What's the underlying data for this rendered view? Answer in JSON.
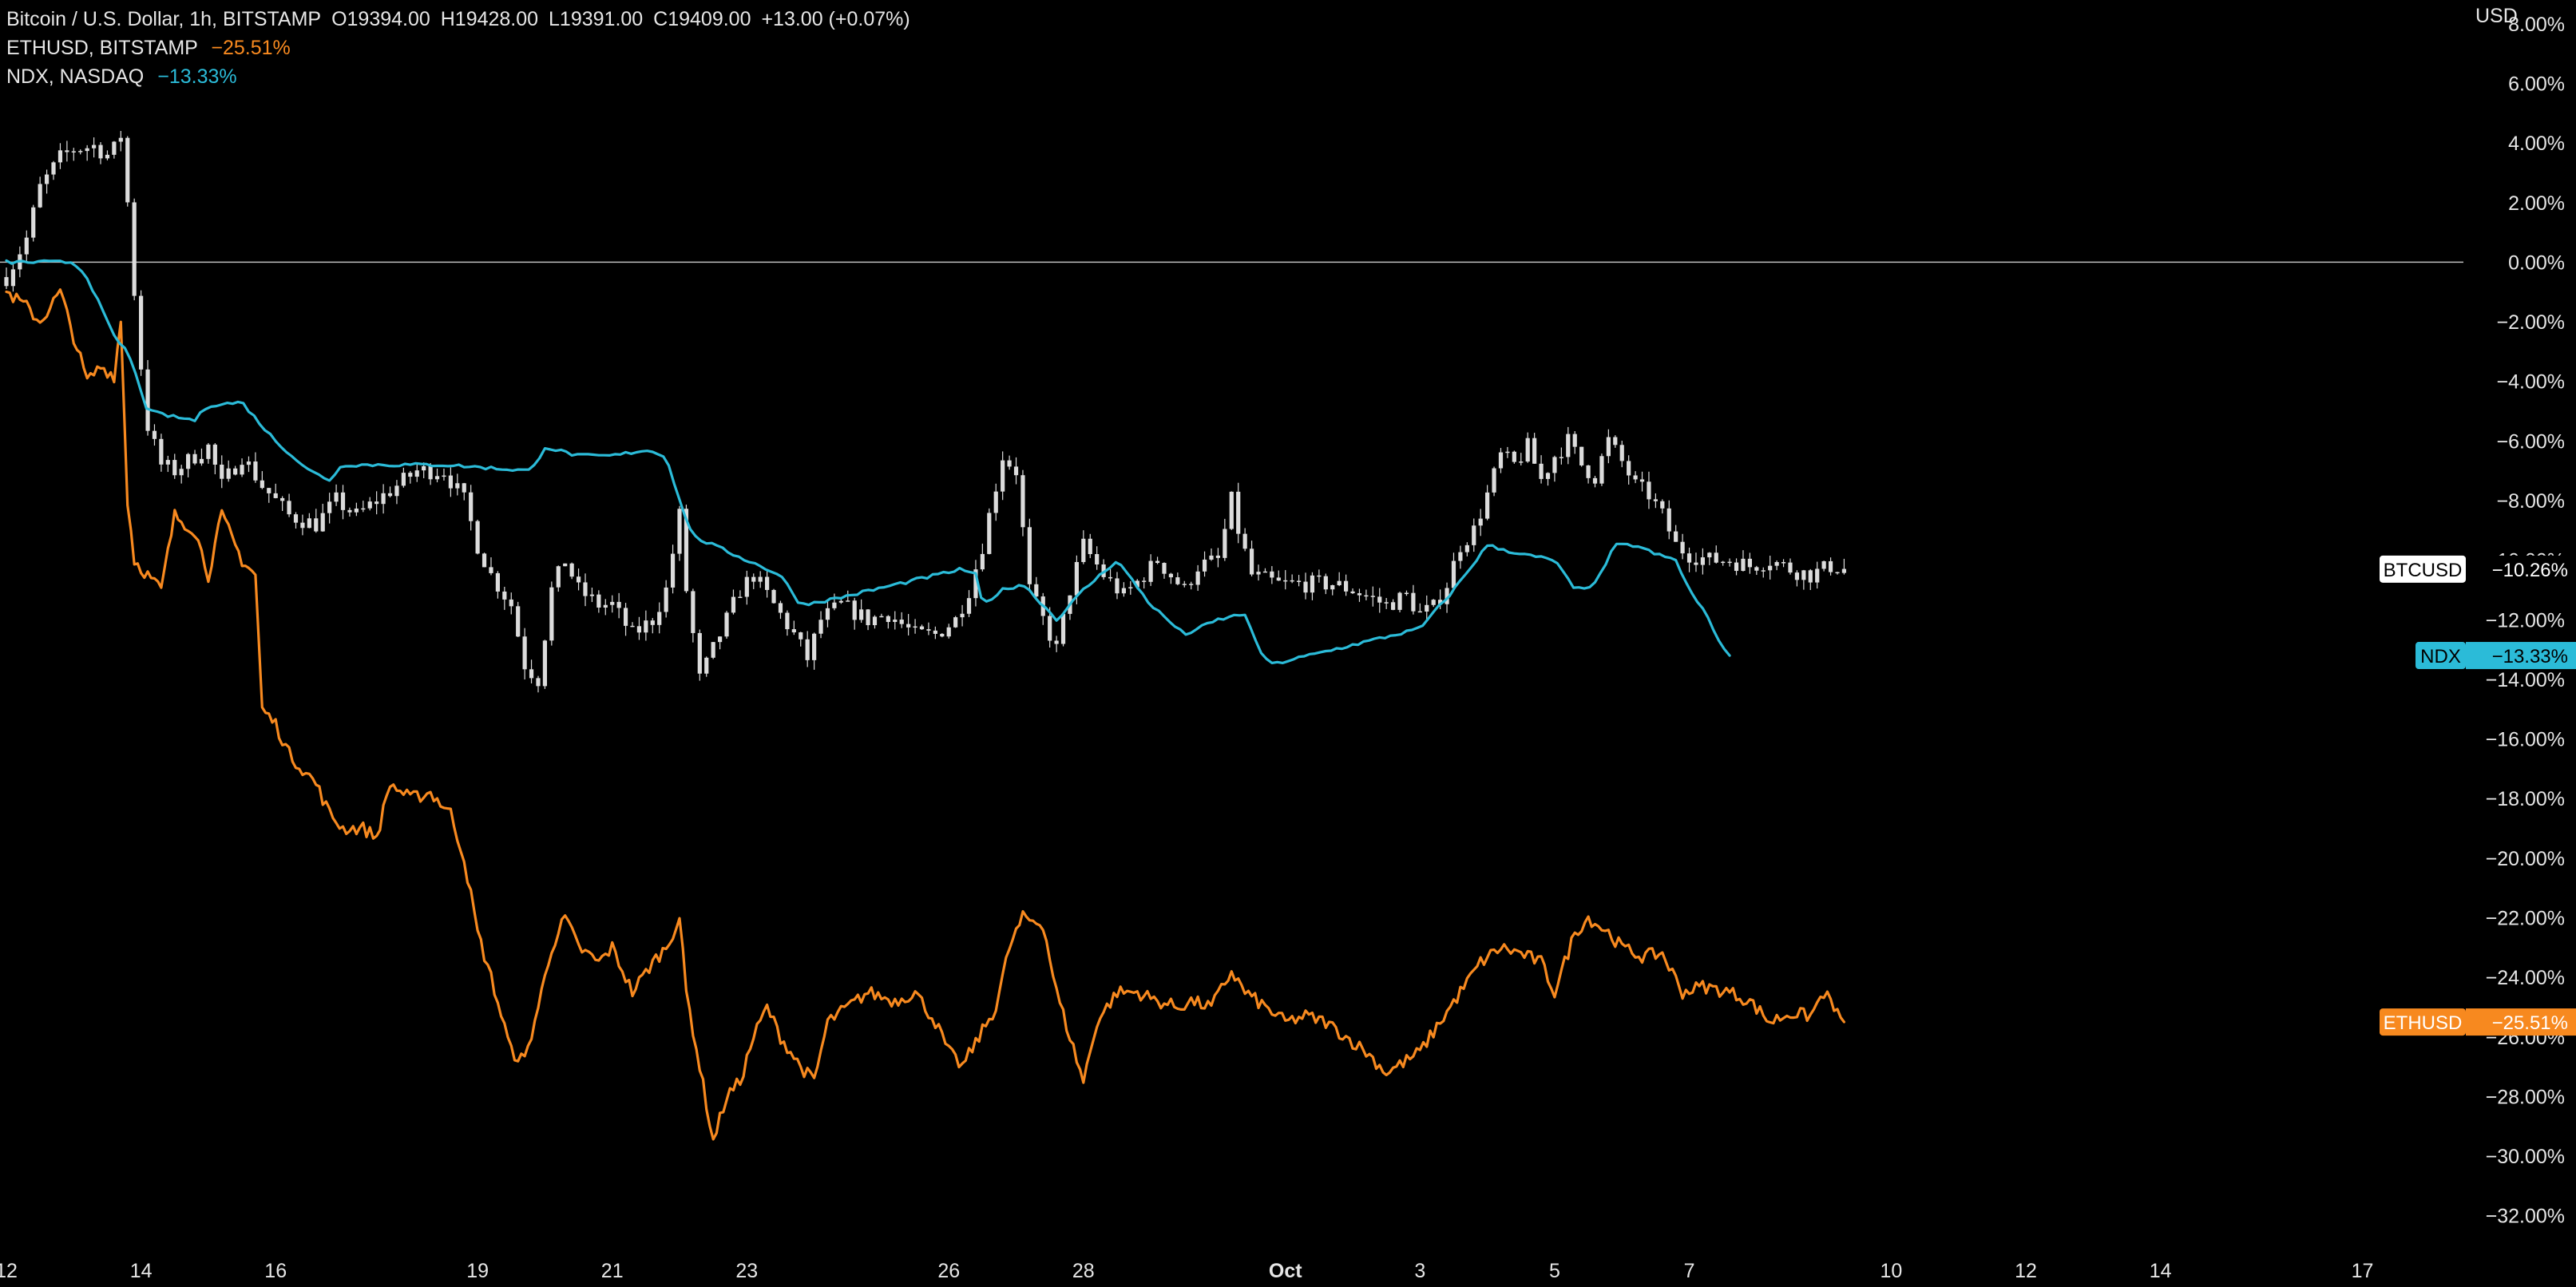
{
  "legend": {
    "btc": {
      "symbol": "Bitcoin / U.S. Dollar, 1h, BITSTAMP",
      "open": "O19394.00",
      "high": "H19428.00",
      "low": "L19391.00",
      "close": "C19409.00",
      "change": "+13.00 (+0.07%)"
    },
    "eth": {
      "symbol": "ETHUSD, BITSTAMP",
      "change": "−25.51%"
    },
    "ndx": {
      "symbol": "NDX, NASDAQ",
      "change": "−13.33%"
    }
  },
  "colors": {
    "background": "#000000",
    "btc_candles": "#dcdcdc",
    "eth": "#f7891f",
    "ndx": "#2bbbd8",
    "zero_line": "#bfbfbf",
    "axis_text": "#e6e6e6"
  },
  "chart_data": {
    "type": "line",
    "title": "",
    "y_axis": {
      "unit_label": "USD",
      "min": -33,
      "max": 8.8,
      "ticks": [
        8,
        6,
        4,
        2,
        0,
        -2,
        -4,
        -6,
        -8,
        -10,
        -12,
        -14,
        -16,
        -18,
        -20,
        -22,
        -24,
        -26,
        -28,
        -30,
        -32
      ],
      "tick_labels": [
        "8.00%",
        "6.00%",
        "4.00%",
        "2.00%",
        "0.00%",
        "−2.00%",
        "−4.00%",
        "−6.00%",
        "−8.00%",
        "−10.00%",
        "−12.00%",
        "−14.00%",
        "−16.00%",
        "−18.00%",
        "−20.00%",
        "−22.00%",
        "−24.00%",
        "−26.00%",
        "−28.00%",
        "−30.00%",
        "−32.00%"
      ]
    },
    "x_axis": {
      "unit": "days from Sep 12",
      "min": 0,
      "max": 36.5,
      "ticks": [
        0,
        2,
        4,
        7,
        9,
        11,
        14,
        16,
        19,
        21,
        23,
        25,
        28,
        30,
        32,
        35
      ],
      "tick_labels": [
        "12",
        "14",
        "16",
        "19",
        "21",
        "23",
        "26",
        "28",
        "Oct",
        "3",
        "5",
        "7",
        "10",
        "12",
        "14",
        "17"
      ],
      "bold_labels": [
        "Oct"
      ]
    },
    "zero_line": 0,
    "series": [
      {
        "name": "BTCUSD",
        "style": "candles",
        "last_label": "−10.26%",
        "points": [
          [
            0,
            -0.5
          ],
          [
            0.3,
            0.8
          ],
          [
            0.5,
            2.5
          ],
          [
            0.8,
            3.5
          ],
          [
            1.0,
            3.8
          ],
          [
            1.3,
            3.9
          ],
          [
            1.5,
            3.6
          ],
          [
            1.6,
            3.8
          ],
          [
            1.75,
            4.5
          ],
          [
            1.8,
            2
          ],
          [
            1.9,
            -1
          ],
          [
            2.0,
            -3.5
          ],
          [
            2.1,
            -5.5
          ],
          [
            2.3,
            -6.8
          ],
          [
            2.5,
            -7
          ],
          [
            2.8,
            -6.5
          ],
          [
            3.0,
            -6.2
          ],
          [
            3.2,
            -7.5
          ],
          [
            3.5,
            -6.5
          ],
          [
            3.8,
            -7.5
          ],
          [
            4.2,
            -8.5
          ],
          [
            4.6,
            -8.8
          ],
          [
            4.9,
            -8
          ],
          [
            5.2,
            -8.5
          ],
          [
            5.5,
            -8
          ],
          [
            5.8,
            -7.5
          ],
          [
            6.1,
            -7
          ],
          [
            6.5,
            -7
          ],
          [
            6.8,
            -8
          ],
          [
            7.0,
            -9.5
          ],
          [
            7.2,
            -10.5
          ],
          [
            7.5,
            -11.5
          ],
          [
            7.7,
            -13.5
          ],
          [
            7.9,
            -14
          ],
          [
            8.1,
            -11
          ],
          [
            8.3,
            -10
          ],
          [
            8.5,
            -11
          ],
          [
            8.8,
            -11.5
          ],
          [
            9.0,
            -11.5
          ],
          [
            9.3,
            -12.5
          ],
          [
            9.6,
            -12
          ],
          [
            9.8,
            -11
          ],
          [
            10.0,
            -8.5
          ],
          [
            10.1,
            -11
          ],
          [
            10.3,
            -14
          ],
          [
            10.5,
            -13
          ],
          [
            10.7,
            -12
          ],
          [
            10.9,
            -11
          ],
          [
            11.1,
            -10.5
          ],
          [
            11.4,
            -11.5
          ],
          [
            11.7,
            -12.5
          ],
          [
            11.9,
            -13.3
          ],
          [
            12.1,
            -12
          ],
          [
            12.4,
            -11.5
          ],
          [
            12.8,
            -12
          ],
          [
            13.1,
            -11.8
          ],
          [
            13.5,
            -12.5
          ],
          [
            13.8,
            -12.5
          ],
          [
            14.1,
            -12
          ],
          [
            14.3,
            -11
          ],
          [
            14.5,
            -9.5
          ],
          [
            14.7,
            -7.5
          ],
          [
            14.8,
            -6.5
          ],
          [
            15.0,
            -7
          ],
          [
            15.1,
            -9
          ],
          [
            15.2,
            -11
          ],
          [
            15.4,
            -12
          ],
          [
            15.6,
            -13
          ],
          [
            15.8,
            -11
          ],
          [
            16.0,
            -9.5
          ],
          [
            16.3,
            -10.5
          ],
          [
            16.6,
            -11.2
          ],
          [
            16.9,
            -10.5
          ],
          [
            17.1,
            -10
          ],
          [
            17.3,
            -10.5
          ],
          [
            17.5,
            -11
          ],
          [
            17.7,
            -10.2
          ],
          [
            18.0,
            -10
          ],
          [
            18.2,
            -8
          ],
          [
            18.3,
            -9
          ],
          [
            18.5,
            -10.5
          ],
          [
            18.9,
            -10.8
          ],
          [
            19.3,
            -10.8
          ],
          [
            19.7,
            -10.8
          ],
          [
            20.0,
            -11
          ],
          [
            20.3,
            -11.3
          ],
          [
            20.5,
            -11.5
          ],
          [
            20.8,
            -11.2
          ],
          [
            21.0,
            -11.8
          ],
          [
            21.2,
            -11.6
          ],
          [
            21.4,
            -10.8
          ],
          [
            21.6,
            -9.5
          ],
          [
            21.8,
            -9
          ],
          [
            22.0,
            -7.8
          ],
          [
            22.2,
            -6.5
          ],
          [
            22.4,
            -6.8
          ],
          [
            22.6,
            -6.2
          ],
          [
            22.8,
            -7.3
          ],
          [
            23.0,
            -6.5
          ],
          [
            23.2,
            -6
          ],
          [
            23.4,
            -6.8
          ],
          [
            23.6,
            -7.2
          ],
          [
            23.8,
            -6
          ],
          [
            24.0,
            -6.7
          ],
          [
            24.2,
            -7.5
          ],
          [
            24.4,
            -7.8
          ],
          [
            24.6,
            -8.5
          ],
          [
            24.8,
            -9.5
          ],
          [
            25.0,
            -9.8
          ],
          [
            25.3,
            -10
          ],
          [
            25.6,
            -10
          ],
          [
            25.9,
            -10.2
          ],
          [
            26.2,
            -10
          ],
          [
            26.5,
            -10.3
          ],
          [
            26.8,
            -10.5
          ],
          [
            27.1,
            -10.2
          ],
          [
            27.3,
            -10.3
          ]
        ]
      },
      {
        "name": "ETHUSD",
        "style": "line",
        "last_label": "−25.51%",
        "points": [
          [
            0,
            -1
          ],
          [
            0.3,
            -1.5
          ],
          [
            0.5,
            -2
          ],
          [
            0.8,
            -1
          ],
          [
            1.0,
            -2.5
          ],
          [
            1.2,
            -4
          ],
          [
            1.4,
            -3.5
          ],
          [
            1.6,
            -3.8
          ],
          [
            1.7,
            -2
          ],
          [
            1.8,
            -8
          ],
          [
            1.9,
            -10
          ],
          [
            2.1,
            -10.5
          ],
          [
            2.3,
            -11
          ],
          [
            2.5,
            -8.5
          ],
          [
            2.8,
            -9
          ],
          [
            3.0,
            -10.5
          ],
          [
            3.2,
            -8.5
          ],
          [
            3.5,
            -10
          ],
          [
            3.7,
            -10.5
          ],
          [
            3.8,
            -15
          ],
          [
            4.0,
            -15.5
          ],
          [
            4.2,
            -16.5
          ],
          [
            4.4,
            -17
          ],
          [
            4.6,
            -17.5
          ],
          [
            4.8,
            -18.5
          ],
          [
            5.0,
            -19
          ],
          [
            5.3,
            -19
          ],
          [
            5.5,
            -19.3
          ],
          [
            5.7,
            -17.5
          ],
          [
            6.0,
            -18
          ],
          [
            6.3,
            -17.8
          ],
          [
            6.6,
            -18.5
          ],
          [
            6.8,
            -20
          ],
          [
            7.0,
            -22.5
          ],
          [
            7.2,
            -24
          ],
          [
            7.5,
            -26.5
          ],
          [
            7.7,
            -26.8
          ],
          [
            7.9,
            -25
          ],
          [
            8.1,
            -23
          ],
          [
            8.3,
            -22
          ],
          [
            8.5,
            -23
          ],
          [
            8.8,
            -23.5
          ],
          [
            9.0,
            -23
          ],
          [
            9.3,
            -24.5
          ],
          [
            9.6,
            -23.5
          ],
          [
            9.8,
            -23
          ],
          [
            10.0,
            -22
          ],
          [
            10.1,
            -24.5
          ],
          [
            10.3,
            -27
          ],
          [
            10.5,
            -29.5
          ],
          [
            10.7,
            -28
          ],
          [
            10.9,
            -27.5
          ],
          [
            11.1,
            -26
          ],
          [
            11.3,
            -25
          ],
          [
            11.5,
            -26
          ],
          [
            11.8,
            -27
          ],
          [
            12.0,
            -27.5
          ],
          [
            12.2,
            -25.5
          ],
          [
            12.5,
            -25
          ],
          [
            12.8,
            -24.5
          ],
          [
            13.2,
            -24.8
          ],
          [
            13.5,
            -24.5
          ],
          [
            13.8,
            -25.5
          ],
          [
            14.0,
            -26.5
          ],
          [
            14.2,
            -27
          ],
          [
            14.5,
            -25.8
          ],
          [
            14.7,
            -25
          ],
          [
            14.9,
            -23
          ],
          [
            15.1,
            -22
          ],
          [
            15.4,
            -22.2
          ],
          [
            15.6,
            -24.5
          ],
          [
            15.8,
            -26
          ],
          [
            16.0,
            -27.5
          ],
          [
            16.2,
            -25.5
          ],
          [
            16.5,
            -24.5
          ],
          [
            16.8,
            -24.5
          ],
          [
            17.1,
            -24.8
          ],
          [
            17.4,
            -25
          ],
          [
            17.6,
            -24.8
          ],
          [
            17.9,
            -25
          ],
          [
            18.2,
            -23.8
          ],
          [
            18.4,
            -24.5
          ],
          [
            18.7,
            -25
          ],
          [
            19.0,
            -25.5
          ],
          [
            19.3,
            -25.3
          ],
          [
            19.6,
            -25.5
          ],
          [
            19.9,
            -26
          ],
          [
            20.2,
            -26.5
          ],
          [
            20.5,
            -27.2
          ],
          [
            20.8,
            -26.8
          ],
          [
            21.0,
            -26.5
          ],
          [
            21.3,
            -25.5
          ],
          [
            21.6,
            -24.5
          ],
          [
            21.9,
            -23.5
          ],
          [
            22.2,
            -23
          ],
          [
            22.5,
            -23.2
          ],
          [
            22.8,
            -23.5
          ],
          [
            23.0,
            -24.5
          ],
          [
            23.3,
            -22.5
          ],
          [
            23.5,
            -22
          ],
          [
            23.8,
            -22.5
          ],
          [
            24.0,
            -23
          ],
          [
            24.3,
            -23.3
          ],
          [
            24.6,
            -23.2
          ],
          [
            24.9,
            -24.5
          ],
          [
            25.2,
            -24.3
          ],
          [
            25.6,
            -24.5
          ],
          [
            25.9,
            -24.8
          ],
          [
            26.2,
            -25.5
          ],
          [
            26.5,
            -25.2
          ],
          [
            26.8,
            -25.3
          ],
          [
            27.0,
            -24.5
          ],
          [
            27.2,
            -25.2
          ],
          [
            27.3,
            -25.5
          ]
        ]
      },
      {
        "name": "NDX",
        "style": "line",
        "last_label": "−13.33%",
        "points": [
          [
            0,
            0
          ],
          [
            0.8,
            0
          ],
          [
            1.0,
            0
          ],
          [
            1.2,
            -0.5
          ],
          [
            1.4,
            -1.5
          ],
          [
            1.6,
            -2.5
          ],
          [
            1.8,
            -3
          ],
          [
            2.0,
            -4.3
          ],
          [
            2.1,
            -5
          ],
          [
            2.5,
            -5.2
          ],
          [
            2.8,
            -5.3
          ],
          [
            3.0,
            -4.8
          ],
          [
            3.5,
            -4.7
          ],
          [
            3.8,
            -5.5
          ],
          [
            4.0,
            -6
          ],
          [
            4.5,
            -7
          ],
          [
            4.8,
            -7.3
          ],
          [
            5.0,
            -6.8
          ],
          [
            6.5,
            -6.8
          ],
          [
            7.8,
            -7
          ],
          [
            8.0,
            -6.2
          ],
          [
            8.5,
            -6.5
          ],
          [
            9.0,
            -6.5
          ],
          [
            9.5,
            -6.3
          ],
          [
            9.8,
            -6.5
          ],
          [
            10.0,
            -8
          ],
          [
            10.2,
            -9.2
          ],
          [
            10.5,
            -9.5
          ],
          [
            11.0,
            -10
          ],
          [
            11.5,
            -10.5
          ],
          [
            11.8,
            -11.5
          ],
          [
            12.3,
            -11.3
          ],
          [
            14.2,
            -10.3
          ],
          [
            14.4,
            -10.5
          ],
          [
            14.5,
            -11.5
          ],
          [
            14.8,
            -11
          ],
          [
            15.1,
            -10.8
          ],
          [
            15.4,
            -11.5
          ],
          [
            15.6,
            -12
          ],
          [
            16.0,
            -11
          ],
          [
            16.5,
            -10
          ],
          [
            17.0,
            -11.5
          ],
          [
            17.5,
            -12.5
          ],
          [
            18.0,
            -12
          ],
          [
            18.4,
            -11.8
          ],
          [
            18.6,
            -13
          ],
          [
            18.8,
            -13.5
          ],
          [
            21.0,
            -12.3
          ],
          [
            21.5,
            -11
          ],
          [
            22.0,
            -9.5
          ],
          [
            22.5,
            -9.8
          ],
          [
            23.0,
            -10
          ],
          [
            23.3,
            -11
          ],
          [
            23.6,
            -10.8
          ],
          [
            23.9,
            -9.5
          ],
          [
            24.2,
            -9.5
          ],
          [
            24.5,
            -9.8
          ],
          [
            24.8,
            -10
          ],
          [
            25.0,
            -11
          ],
          [
            25.3,
            -12
          ],
          [
            25.5,
            -13
          ],
          [
            25.6,
            -13.2
          ]
        ]
      }
    ]
  }
}
